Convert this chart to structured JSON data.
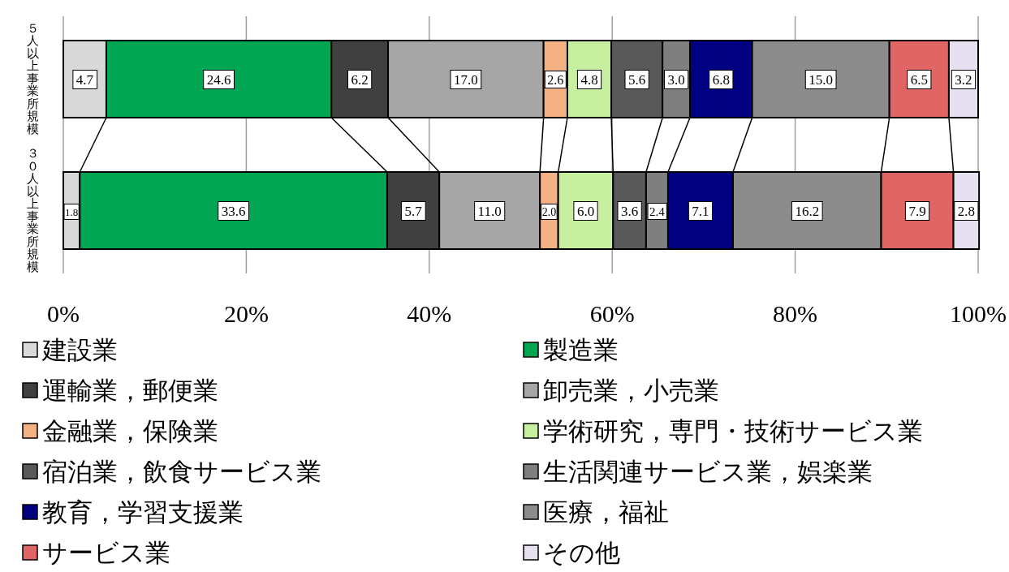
{
  "chart_data": {
    "type": "bar",
    "orientation": "horizontal",
    "stacked": true,
    "categories": [
      "５人以上事業所規模",
      "３０人以上事業所規模"
    ],
    "series": [
      {
        "name": "建設業",
        "color": "#d9d9d9",
        "values": [
          4.7,
          1.8
        ],
        "value_labels": [
          "4.7",
          "1.8"
        ]
      },
      {
        "name": "製造業",
        "color": "#00a651",
        "values": [
          24.6,
          33.6
        ],
        "value_labels": [
          "24.6",
          "33.6"
        ]
      },
      {
        "name": "運輸業，郵便業",
        "color": "#404040",
        "values": [
          6.2,
          5.7
        ],
        "value_labels": [
          "6.2",
          "5.7"
        ]
      },
      {
        "name": "卸売業，小売業",
        "color": "#a6a6a6",
        "values": [
          17.0,
          11.0
        ],
        "value_labels": [
          "17.0",
          "11.0"
        ]
      },
      {
        "name": "金融業，保険業",
        "color": "#f4b183",
        "values": [
          2.6,
          2.0
        ],
        "value_labels": [
          "2.6",
          "2.0"
        ]
      },
      {
        "name": "学術研究，専門・技術サービス業",
        "color": "#c6f0a0",
        "values": [
          4.8,
          6.0
        ],
        "value_labels": [
          "4.8",
          "6.0"
        ]
      },
      {
        "name": "宿泊業，飲食サービス業",
        "color": "#595959",
        "values": [
          5.6,
          3.6
        ],
        "value_labels": [
          "5.6",
          "3.6"
        ]
      },
      {
        "name": "生活関連サービス業，娯楽業",
        "color": "#7f7f7f",
        "values": [
          3.0,
          2.4
        ],
        "value_labels": [
          "3.0",
          "2.4"
        ]
      },
      {
        "name": "教育，学習支援業",
        "color": "#000080",
        "values": [
          6.8,
          7.1
        ],
        "value_labels": [
          "6.8",
          "7.1"
        ]
      },
      {
        "name": "医療，福祉",
        "color": "#8c8c8c",
        "values": [
          15.0,
          16.2
        ],
        "value_labels": [
          "15.0",
          "16.2"
        ]
      },
      {
        "name": "サービス業",
        "color": "#e06666",
        "values": [
          6.5,
          7.9
        ],
        "value_labels": [
          "6.5",
          "7.9"
        ]
      },
      {
        "name": "その他",
        "color": "#e6e0f0",
        "values": [
          3.2,
          2.8
        ],
        "value_labels": [
          "3.2",
          "2.8"
        ]
      }
    ],
    "xlim": [
      0,
      100
    ],
    "xticks": [
      {
        "value": 0,
        "label": "0%"
      },
      {
        "value": 20,
        "label": "20%"
      },
      {
        "value": 40,
        "label": "40%"
      },
      {
        "value": 60,
        "label": "60%"
      },
      {
        "value": 80,
        "label": "80%"
      },
      {
        "value": 100,
        "label": "100%"
      }
    ],
    "grid": "x",
    "legend": "bottom"
  }
}
